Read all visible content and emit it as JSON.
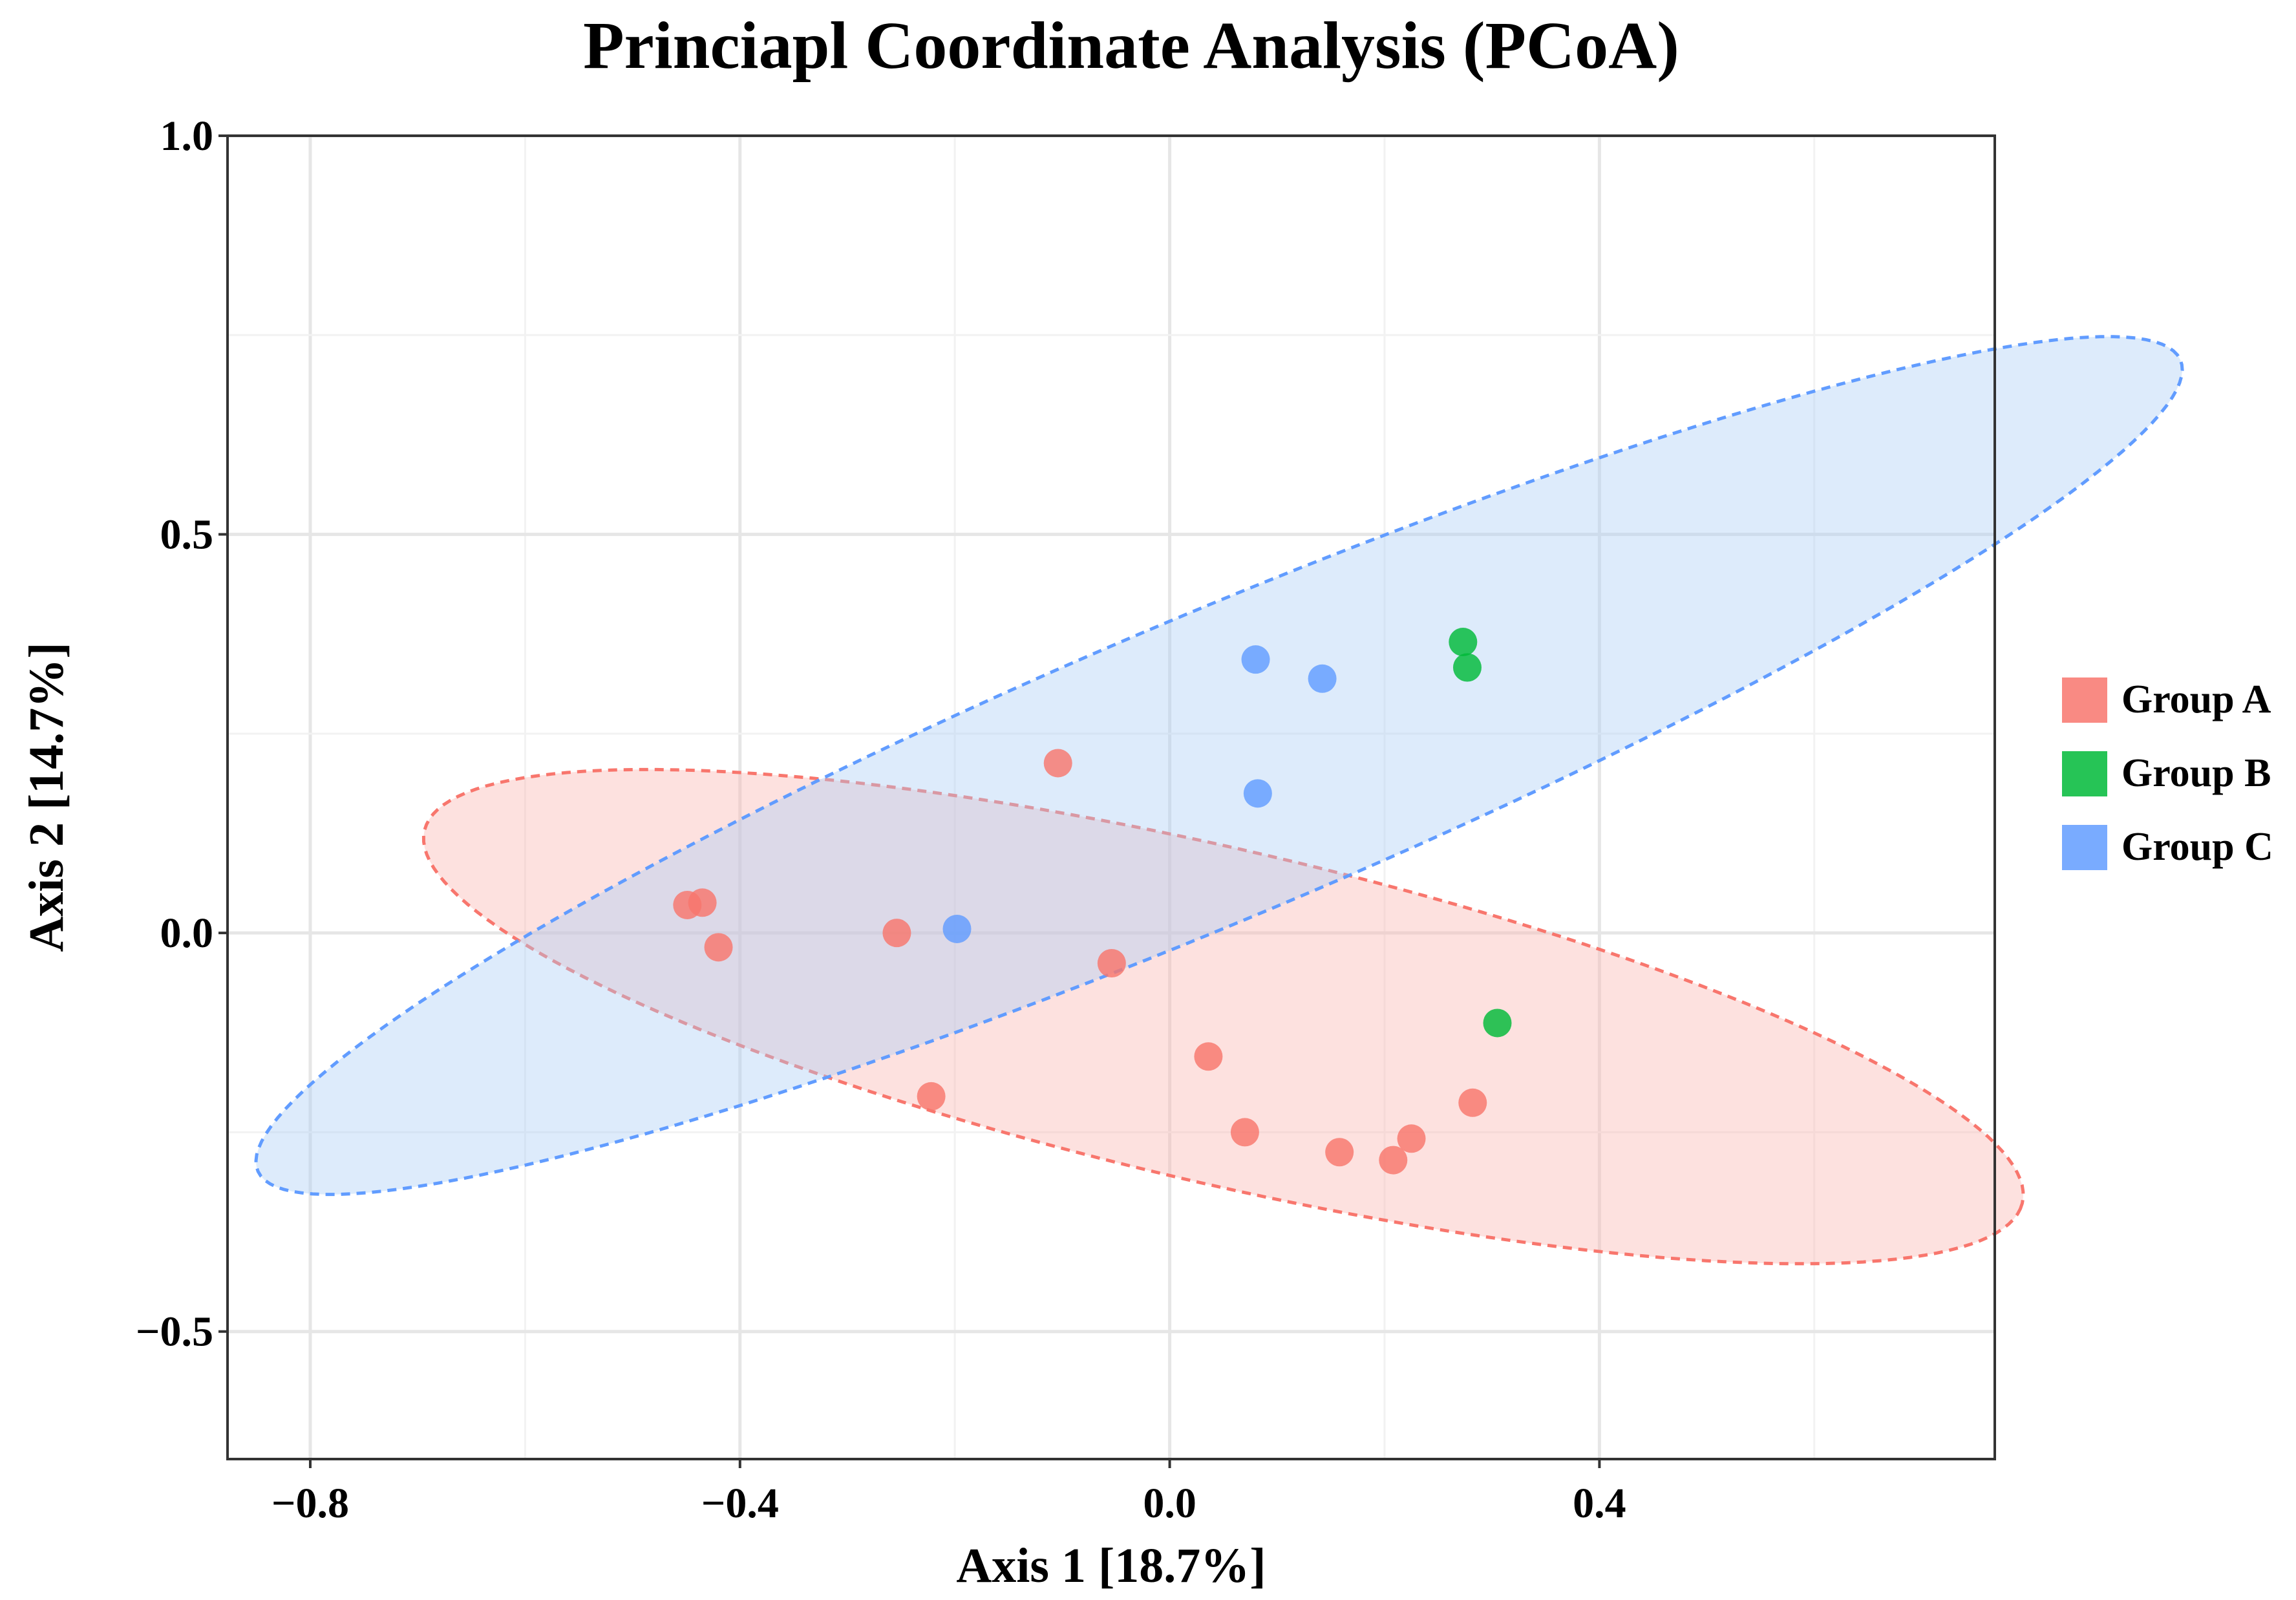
{
  "chart_data": {
    "type": "scatter",
    "title": "Princiapl Coordinate Analysis (PCoA)",
    "xlabel": "Axis 1 [18.7%]",
    "ylabel": "Axis 2 [14.7%]",
    "xlim": [
      -0.877,
      0.768
    ],
    "ylim": [
      -0.66,
      1.0
    ],
    "x_ticks": [
      -0.8,
      -0.4,
      0.0,
      0.4
    ],
    "x_tick_labels": [
      "−0.8",
      "−0.4",
      "0.0",
      "0.4"
    ],
    "y_ticks": [
      -0.5,
      0.0,
      0.5,
      1.0
    ],
    "y_tick_labels": [
      "−0.5",
      "0.0",
      "0.5",
      "1.0"
    ],
    "grid": true,
    "legend_position": "right",
    "series": [
      {
        "name": "Group A",
        "color": "#F8766D",
        "fill": "#FBB4AE",
        "points": [
          {
            "x": -0.449,
            "y": 0.035
          },
          {
            "x": -0.435,
            "y": 0.038
          },
          {
            "x": -0.42,
            "y": -0.018
          },
          {
            "x": -0.254,
            "y": 0.0
          },
          {
            "x": -0.222,
            "y": -0.205
          },
          {
            "x": -0.104,
            "y": 0.213
          },
          {
            "x": -0.054,
            "y": -0.038
          },
          {
            "x": 0.036,
            "y": -0.155
          },
          {
            "x": 0.07,
            "y": -0.25
          },
          {
            "x": 0.158,
            "y": -0.275
          },
          {
            "x": 0.208,
            "y": -0.285
          },
          {
            "x": 0.225,
            "y": -0.258
          },
          {
            "x": 0.282,
            "y": -0.213
          }
        ],
        "ellipse": {
          "cx": 0.05,
          "cy": -0.105,
          "rx": 0.78,
          "ry": 0.205,
          "angle_deg": -18
        }
      },
      {
        "name": "Group B",
        "color": "#00BA38",
        "points": [
          {
            "x": 0.273,
            "y": 0.365
          },
          {
            "x": 0.277,
            "y": 0.333
          },
          {
            "x": 0.305,
            "y": -0.113
          }
        ]
      },
      {
        "name": "Group C",
        "color": "#619CFF",
        "fill": "#A9CEF4",
        "points": [
          {
            "x": -0.198,
            "y": 0.005
          },
          {
            "x": 0.08,
            "y": 0.343
          },
          {
            "x": 0.142,
            "y": 0.319
          },
          {
            "x": 0.082,
            "y": 0.175
          }
        ],
        "ellipse": {
          "cx": 0.046,
          "cy": 0.21,
          "rx": 1.03,
          "ry": 0.18,
          "angle_deg": 30
        }
      }
    ]
  }
}
